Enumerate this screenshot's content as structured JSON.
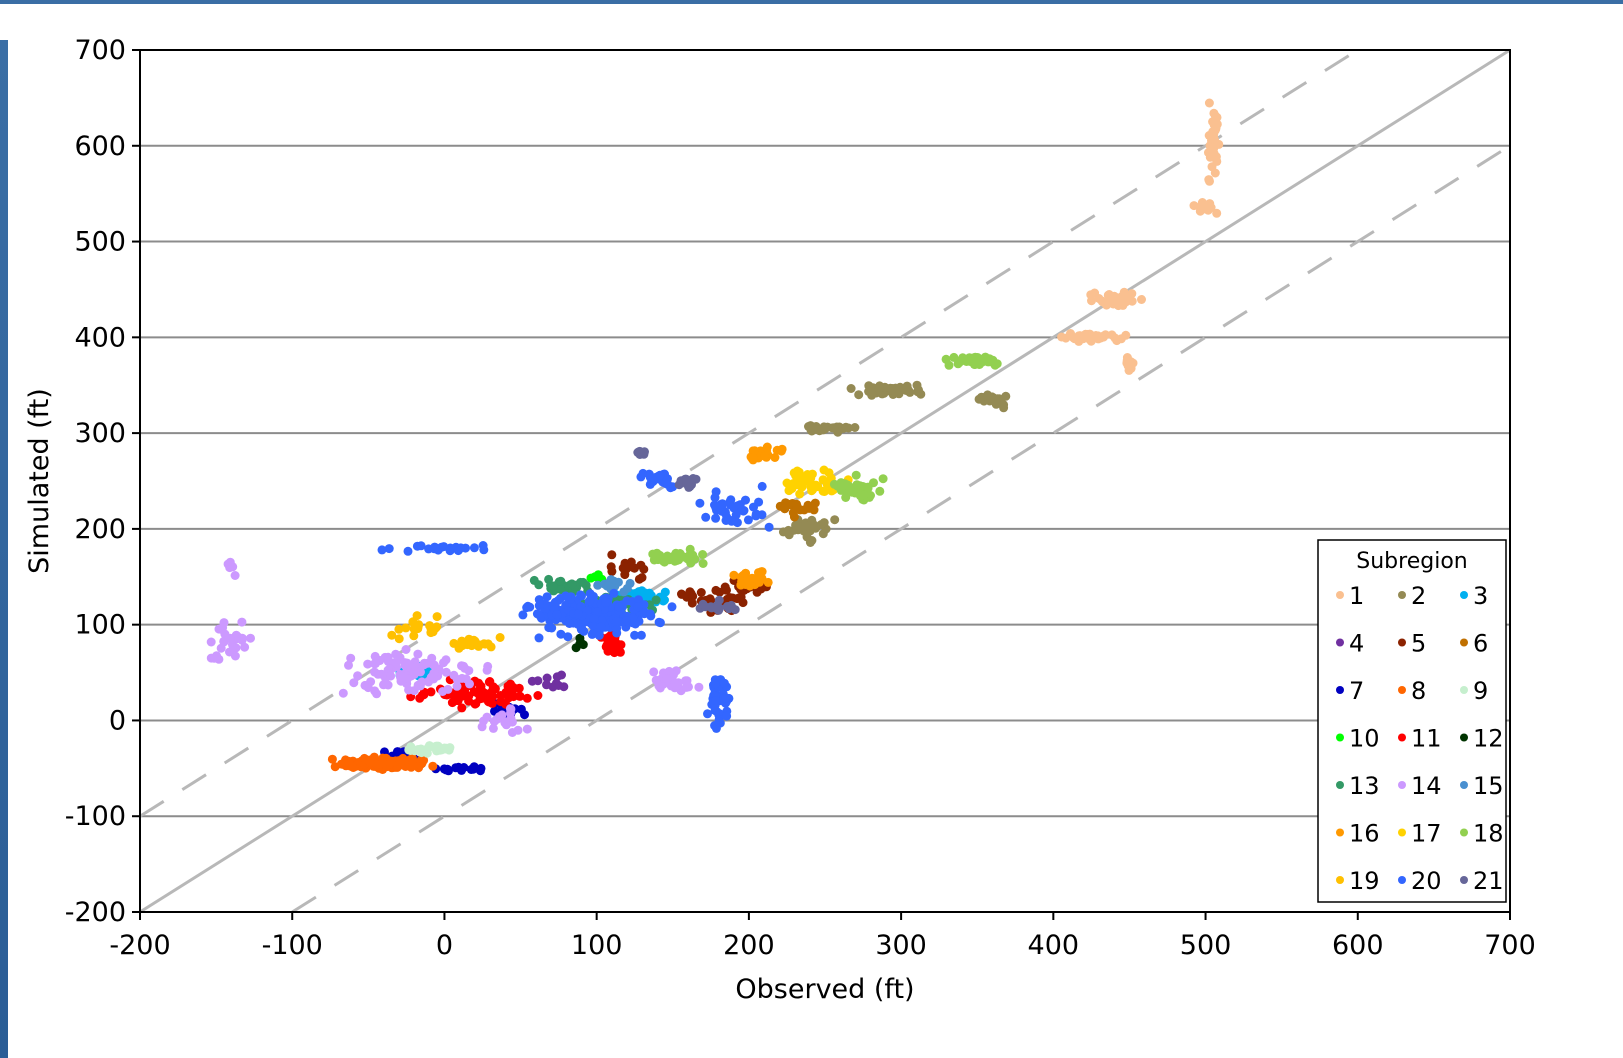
{
  "chart_data": {
    "type": "scatter",
    "title": "",
    "xlabel": "Observed (ft)",
    "ylabel": "Simulated (ft)",
    "xlim": [
      -200,
      700
    ],
    "ylim": [
      -200,
      700
    ],
    "x_ticks": [
      "-200",
      "-100",
      "0",
      "100",
      "200",
      "300",
      "400",
      "500",
      "600",
      "700"
    ],
    "y_ticks": [
      "-200",
      "-100",
      "0",
      "100",
      "200",
      "300",
      "400",
      "500",
      "600",
      "700"
    ],
    "grid": "horizontal",
    "reference_lines": [
      {
        "style": "solid",
        "x": [
          -200,
          700
        ],
        "y": [
          -200,
          700
        ]
      },
      {
        "style": "dashed",
        "x": [
          -200,
          600
        ],
        "y": [
          -100,
          700
        ]
      },
      {
        "style": "dashed",
        "x": [
          -100,
          700
        ],
        "y": [
          -200,
          600
        ]
      }
    ],
    "legend": {
      "title": "Subregion",
      "position": "bottom-right"
    },
    "series": [
      {
        "name": "1",
        "color": "#fac090",
        "clusters": [
          [
            505,
            600,
            8,
            60,
            40
          ],
          [
            500,
            535,
            12,
            8,
            10
          ],
          [
            440,
            440,
            20,
            10,
            40
          ],
          [
            425,
            400,
            30,
            5,
            40
          ],
          [
            450,
            375,
            5,
            10,
            10
          ]
        ]
      },
      {
        "name": "2",
        "color": "#948a54",
        "clusters": [
          [
            290,
            345,
            30,
            8,
            40
          ],
          [
            360,
            335,
            15,
            10,
            25
          ],
          [
            250,
            305,
            25,
            5,
            30
          ],
          [
            240,
            200,
            20,
            20,
            30
          ]
        ]
      },
      {
        "name": "3",
        "color": "#00b0f0",
        "clusters": [
          [
            130,
            130,
            25,
            10,
            30
          ],
          [
            -20,
            50,
            15,
            10,
            10
          ]
        ]
      },
      {
        "name": "4",
        "color": "#7030a0",
        "clusters": [
          [
            70,
            40,
            20,
            10,
            10
          ]
        ]
      },
      {
        "name": "5",
        "color": "#8b2200",
        "clusters": [
          [
            180,
            125,
            30,
            20,
            40
          ],
          [
            120,
            160,
            20,
            15,
            20
          ],
          [
            200,
            140,
            20,
            10,
            20
          ]
        ]
      },
      {
        "name": "6",
        "color": "#c07000",
        "clusters": [
          [
            230,
            220,
            20,
            15,
            20
          ]
        ]
      },
      {
        "name": "7",
        "color": "#0000c0",
        "clusters": [
          [
            -30,
            -40,
            20,
            10,
            30
          ],
          [
            40,
            10,
            15,
            10,
            20
          ],
          [
            10,
            -50,
            30,
            5,
            15
          ]
        ]
      },
      {
        "name": "8",
        "color": "#ff6600",
        "clusters": [
          [
            -40,
            -45,
            40,
            8,
            160
          ]
        ]
      },
      {
        "name": "9",
        "color": "#c6efce",
        "clusters": [
          [
            -10,
            -30,
            20,
            5,
            30
          ]
        ]
      },
      {
        "name": "10",
        "color": "#00ff00",
        "clusters": [
          [
            100,
            150,
            5,
            5,
            5
          ]
        ]
      },
      {
        "name": "11",
        "color": "#ff0000",
        "clusters": [
          [
            20,
            30,
            50,
            20,
            80
          ],
          [
            110,
            80,
            10,
            20,
            20
          ]
        ]
      },
      {
        "name": "12",
        "color": "#003300",
        "clusters": [
          [
            90,
            80,
            10,
            10,
            5
          ]
        ]
      },
      {
        "name": "13",
        "color": "#339966",
        "clusters": [
          [
            110,
            120,
            35,
            15,
            60
          ],
          [
            80,
            140,
            25,
            10,
            30
          ]
        ]
      },
      {
        "name": "14",
        "color": "#cc99ff",
        "clusters": [
          [
            -140,
            80,
            20,
            30,
            30
          ],
          [
            -20,
            50,
            60,
            30,
            100
          ],
          [
            150,
            40,
            30,
            15,
            30
          ],
          [
            -140,
            160,
            5,
            15,
            5
          ],
          [
            40,
            0,
            20,
            20,
            20
          ]
        ]
      },
      {
        "name": "15",
        "color": "#4a90d0",
        "clusters": [
          [
            110,
            140,
            20,
            10,
            20
          ]
        ]
      },
      {
        "name": "16",
        "color": "#ff9900",
        "clusters": [
          [
            210,
            280,
            15,
            10,
            30
          ],
          [
            200,
            150,
            15,
            15,
            30
          ]
        ]
      },
      {
        "name": "17",
        "color": "#ffd200",
        "clusters": [
          [
            240,
            250,
            30,
            20,
            40
          ]
        ]
      },
      {
        "name": "18",
        "color": "#92d050",
        "clusters": [
          [
            350,
            375,
            25,
            8,
            40
          ],
          [
            270,
            240,
            25,
            20,
            40
          ],
          [
            150,
            170,
            30,
            10,
            30
          ]
        ]
      },
      {
        "name": "19",
        "color": "#ffc000",
        "clusters": [
          [
            -20,
            100,
            20,
            20,
            20
          ],
          [
            20,
            80,
            20,
            10,
            20
          ]
        ]
      },
      {
        "name": "20",
        "color": "#3366ff",
        "clusters": [
          [
            100,
            110,
            60,
            30,
            200
          ],
          [
            180,
            20,
            10,
            40,
            40
          ],
          [
            0,
            180,
            60,
            5,
            20
          ],
          [
            190,
            220,
            30,
            30,
            40
          ],
          [
            140,
            250,
            20,
            15,
            20
          ]
        ]
      },
      {
        "name": "21",
        "color": "#666699",
        "clusters": [
          [
            130,
            280,
            5,
            5,
            10
          ],
          [
            160,
            250,
            10,
            10,
            15
          ],
          [
            180,
            120,
            20,
            10,
            15
          ]
        ]
      }
    ]
  }
}
